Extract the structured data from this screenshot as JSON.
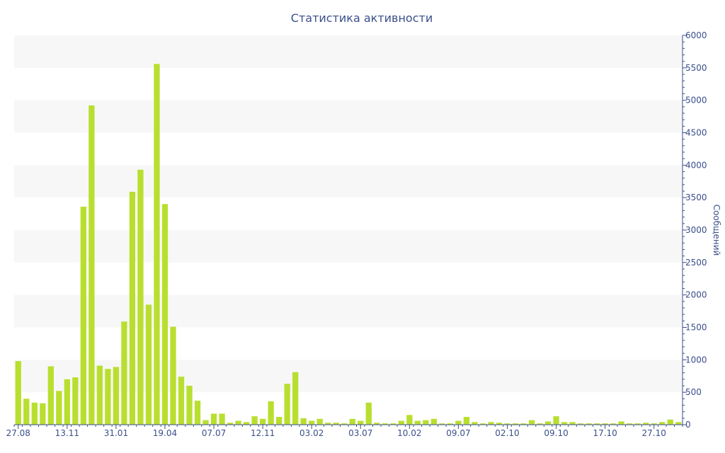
{
  "chart_data": {
    "type": "bar",
    "title": "Статистика активности",
    "ylabel": "Сообщений",
    "xlabel": "",
    "ylim": [
      0,
      6000
    ],
    "y_ticks": [
      0,
      500,
      1000,
      1500,
      2000,
      2500,
      3000,
      3500,
      4000,
      4500,
      5000,
      5500,
      6000
    ],
    "y_axis_side": "right",
    "grid": "alternating horizontal bands",
    "x_tick_labels": [
      {
        "label": "27.08",
        "bar_index": 0
      },
      {
        "label": "13.11",
        "bar_index": 6
      },
      {
        "label": "31.01",
        "bar_index": 12
      },
      {
        "label": "19.04",
        "bar_index": 18
      },
      {
        "label": "07.07",
        "bar_index": 24
      },
      {
        "label": "12.11",
        "bar_index": 30
      },
      {
        "label": "03.02",
        "bar_index": 36
      },
      {
        "label": "03.07",
        "bar_index": 42
      },
      {
        "label": "10.02",
        "bar_index": 48
      },
      {
        "label": "09.07",
        "bar_index": 54
      },
      {
        "label": "02.10",
        "bar_index": 60
      },
      {
        "label": "09.10",
        "bar_index": 66
      },
      {
        "label": "17.10",
        "bar_index": 72
      },
      {
        "label": "27.10",
        "bar_index": 78
      }
    ],
    "values": [
      980,
      400,
      340,
      330,
      900,
      520,
      700,
      730,
      3360,
      4920,
      910,
      860,
      890,
      1590,
      3590,
      3930,
      1850,
      5560,
      3400,
      1510,
      740,
      600,
      370,
      70,
      170,
      170,
      30,
      60,
      40,
      130,
      90,
      360,
      120,
      630,
      810,
      100,
      60,
      90,
      30,
      30,
      20,
      90,
      60,
      340,
      30,
      20,
      20,
      60,
      150,
      60,
      70,
      90,
      20,
      20,
      60,
      120,
      40,
      20,
      40,
      30,
      20,
      20,
      20,
      70,
      20,
      50,
      130,
      40,
      40,
      20,
      20,
      20,
      20,
      20,
      50,
      20,
      20,
      30,
      20,
      40,
      80,
      40
    ],
    "bar_color": "#b8df2f",
    "band_color": "#f7f7f7",
    "axis_color": "#3b4f8a"
  }
}
